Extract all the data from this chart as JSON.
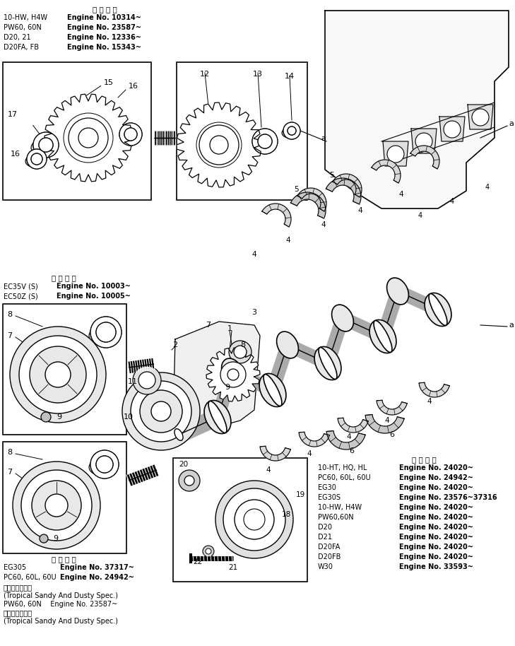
{
  "bg_color": "#ffffff",
  "figsize": [
    7.29,
    9.14
  ],
  "dpi": 100,
  "top_header": "適 用 号 機",
  "top_applicability": [
    [
      "10-HW, H4W",
      "Engine No. 10314~"
    ],
    [
      "PW60, 60N",
      "Engine No. 23587~"
    ],
    [
      "D20, 21",
      "Engine No. 12336~"
    ],
    [
      "D20FA, FB",
      "Engine No. 15343~"
    ]
  ],
  "ec_header": "適 用 号 機",
  "ec_applicability": [
    [
      "EC35V (S)",
      "Engine No. 10003~"
    ],
    [
      "EC50Z (S)",
      "Engine No. 10005~"
    ]
  ],
  "eg305_header": "適 用 号 機",
  "eg305_applicability": [
    [
      "EG305",
      "Engine No. 37317~"
    ],
    [
      "PC60, 60L, 60U",
      "Engine No. 24942~"
    ]
  ],
  "eg305_note1": "熱帯砂漠地仕様",
  "eg305_note2": "(Tropical Sandy And Dusty Spec.)",
  "eg305_note3": "PW60, 60N    Engine No. 23587~",
  "eg305_note4": "熱帯砂漠地仕様",
  "eg305_note5": "(Tropical Sandy And Dusty Spec.)",
  "bottom_header": "適 用 号 機",
  "bottom_applicability": [
    [
      "10-HT, HQ, HL",
      "Engine No. 24020~"
    ],
    [
      "PC60, 60L, 60U",
      "Engine No. 24942~"
    ],
    [
      "EG30",
      "Engine No. 24020~"
    ],
    [
      "EG30S",
      "Engine No. 23576~37316"
    ],
    [
      "10-HW, H4W",
      "Engine No. 24020~"
    ],
    [
      "PW60,60N",
      "Engine No. 24020~"
    ],
    [
      "D20",
      "Engine No. 24020~"
    ],
    [
      "D21",
      "Engine No. 24020~"
    ],
    [
      "D20FA",
      "Engine No. 24020~"
    ],
    [
      "D20FB",
      "Engine No. 24020~"
    ],
    [
      "W30",
      "Engine No. 33593~"
    ]
  ]
}
